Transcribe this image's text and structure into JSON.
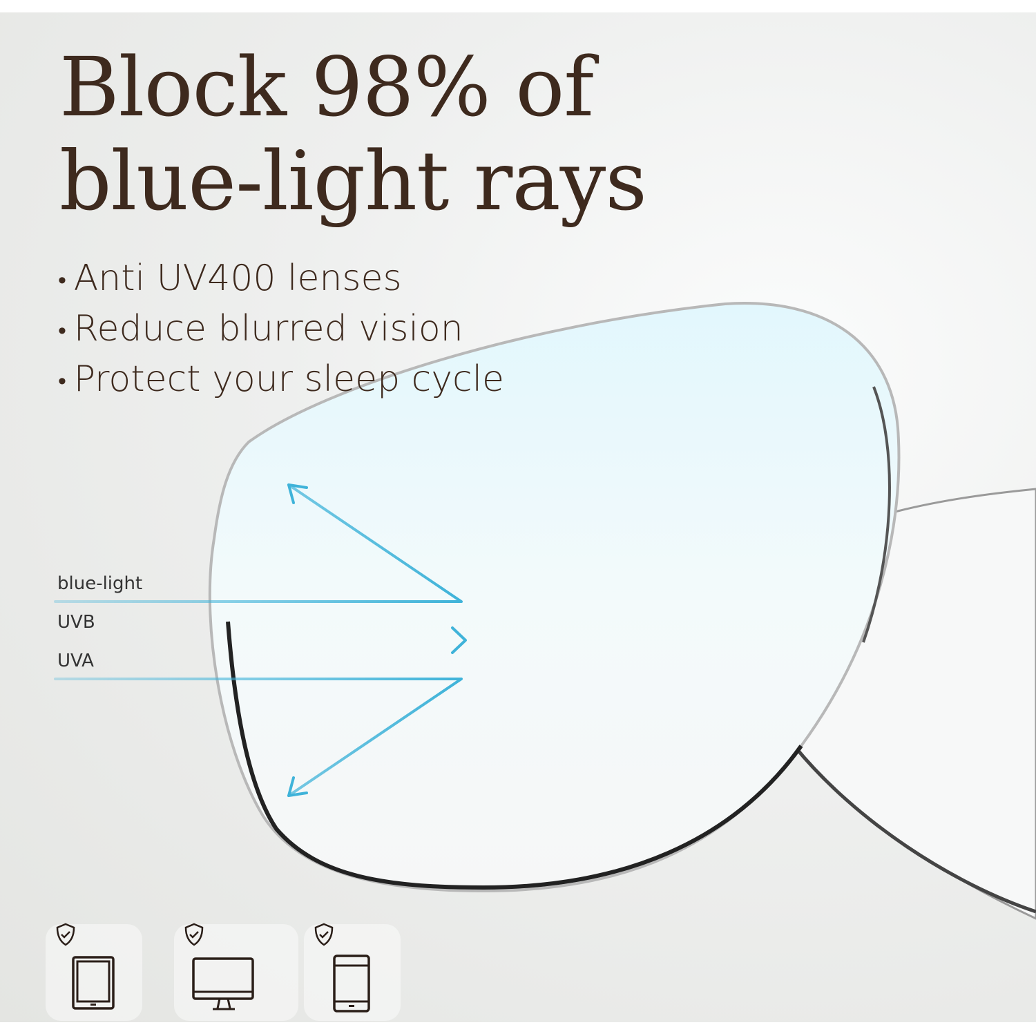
{
  "headline": {
    "line1": "Block 98% of",
    "line2": "blue-light rays"
  },
  "bullets": [
    "Anti UV400 lenses",
    "Reduce blurred vision",
    "Protect your sleep cycle"
  ],
  "rays": [
    {
      "label": "blue-light",
      "behavior": "reflected"
    },
    {
      "label": "UVB",
      "behavior": "passes"
    },
    {
      "label": "UVA",
      "behavior": "reflected"
    }
  ],
  "devices": [
    {
      "icon": "tablet-icon",
      "badge": "shield-check-icon"
    },
    {
      "icon": "monitor-icon",
      "badge": "shield-check-icon"
    },
    {
      "icon": "smartphone-icon",
      "badge": "shield-check-icon"
    }
  ],
  "colors": {
    "text": "#3e2a1e",
    "ray": "#3fb3d9",
    "lens_tint": "#e6f7fc"
  }
}
